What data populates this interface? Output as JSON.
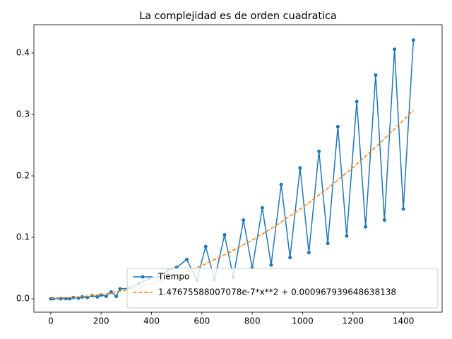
{
  "chart_data": {
    "type": "line",
    "title": "La complejidad es de orden cuadratica",
    "series": [
      {
        "name": "Tiempo",
        "color": "#1f77b4",
        "style": "solid",
        "marker": true,
        "x": [
          0,
          10,
          40,
          60,
          75,
          90,
          110,
          125,
          145,
          165,
          185,
          200,
          220,
          240,
          260,
          275,
          310,
          350,
          390,
          430,
          465,
          500,
          540,
          580,
          615,
          650,
          690,
          725,
          765,
          800,
          840,
          875,
          915,
          950,
          990,
          1025,
          1065,
          1100,
          1140,
          1175,
          1215,
          1250,
          1290,
          1325,
          1365,
          1400,
          1440
        ],
        "values": [
          0,
          0,
          0,
          0,
          0,
          0.002,
          0.001,
          0.003,
          0.002,
          0.005,
          0.003,
          0.006,
          0.004,
          0.011,
          0.004,
          0.016,
          0.017,
          0.025,
          0.033,
          0.036,
          0.047,
          0.051,
          0.064,
          0.03,
          0.085,
          0.031,
          0.104,
          0.035,
          0.128,
          0.05,
          0.148,
          0.055,
          0.186,
          0.067,
          0.213,
          0.075,
          0.24,
          0.09,
          0.28,
          0.102,
          0.321,
          0.117,
          0.364,
          0.128,
          0.406,
          0.146,
          0.421
        ]
      },
      {
        "name": "1.47675588007078e-7*x**2 + 0.000967939648638138",
        "color": "#ff7f0e",
        "style": "dashed",
        "marker": false,
        "x": [
          0,
          100,
          200,
          300,
          400,
          500,
          600,
          700,
          800,
          900,
          1000,
          1100,
          1200,
          1300,
          1400,
          1440
        ],
        "values": [
          0.00097,
          0.0024,
          0.00688,
          0.0143,
          0.0246,
          0.0379,
          0.0541,
          0.0733,
          0.0955,
          0.1206,
          0.1486,
          0.1797,
          0.2136,
          0.2506,
          0.2904,
          0.3072
        ]
      }
    ],
    "xlim": [
      -67,
      1554
    ],
    "ylim": [
      -0.0218,
      0.446
    ],
    "xticks": [
      0,
      200,
      400,
      600,
      800,
      1000,
      1200,
      1400
    ],
    "yticks": [
      {
        "value": 0,
        "label": "0.0"
      },
      0.1,
      0.2,
      0.3,
      0.4
    ],
    "legend": "lower right"
  }
}
